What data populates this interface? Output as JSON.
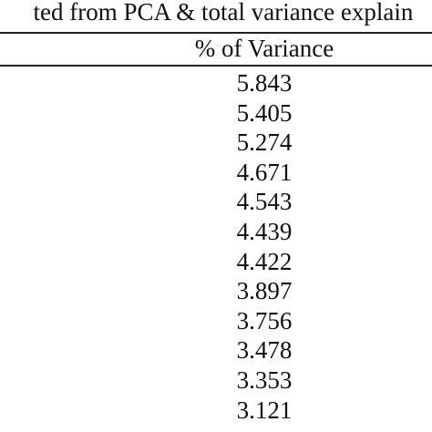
{
  "caption": "ted from PCA & total variance explain",
  "table": {
    "column_header": "% of Variance",
    "values": [
      "5.843",
      "5.405",
      "5.274",
      "4.671",
      "4.543",
      "4.439",
      "4.422",
      "3.897",
      "3.756",
      "3.478",
      "3.353",
      "3.121"
    ]
  }
}
